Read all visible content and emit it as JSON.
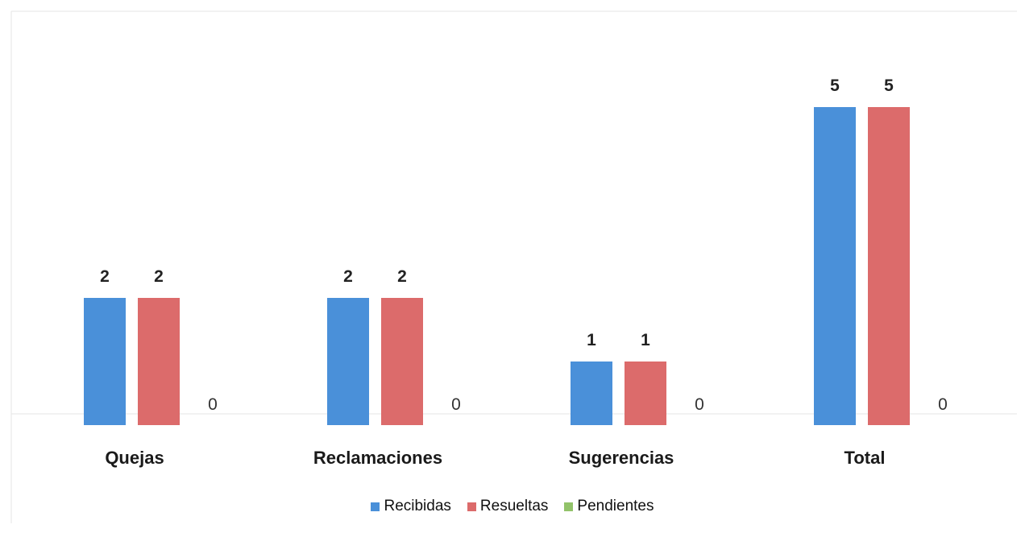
{
  "chart_data": {
    "type": "bar",
    "categories": [
      "Quejas",
      "Reclamaciones",
      "Sugerencias",
      "Total"
    ],
    "series": [
      {
        "name": "Recibidas",
        "values": [
          2,
          2,
          1,
          5
        ],
        "color": "#4a90d9"
      },
      {
        "name": "Resueltas",
        "values": [
          2,
          2,
          1,
          5
        ],
        "color": "#dc6b6b"
      },
      {
        "name": "Pendientes",
        "values": [
          0,
          0,
          0,
          0
        ],
        "color": "#92c36a"
      }
    ],
    "data_labels": true,
    "legend_position": "bottom",
    "grid": false,
    "ylim": [
      0,
      5
    ]
  },
  "legend": {
    "items": [
      {
        "label": "Recibidas",
        "color": "#4a90d9"
      },
      {
        "label": "Resueltas",
        "color": "#dc6b6b"
      },
      {
        "label": "Pendientes",
        "color": "#92c36a"
      }
    ]
  }
}
